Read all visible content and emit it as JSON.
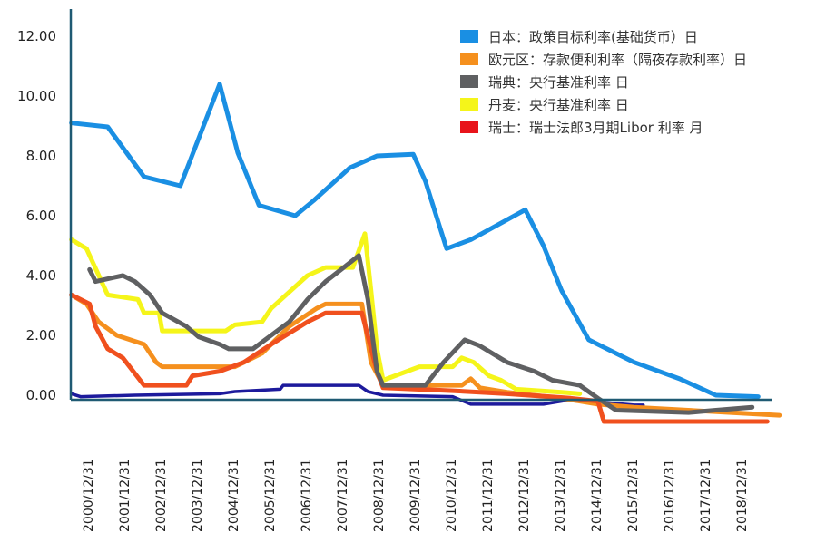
{
  "chart_data": {
    "type": "line",
    "title": "",
    "xlabel": "",
    "ylabel": "",
    "ylim": [
      -1,
      12.5
    ],
    "grid": false,
    "legend_placement": "top-right",
    "y_ticks": [
      "12.00",
      "10.00",
      "8.00",
      "6.00",
      "4.00",
      "2.00",
      "0.00"
    ],
    "y_tick_values": [
      12,
      10,
      8,
      6,
      4,
      2,
      0
    ],
    "x_ticks": [
      "2000/12/31",
      "2001/12/31",
      "2002/12/31",
      "2003/12/31",
      "2004/12/31",
      "2005/12/31",
      "2006/12/31",
      "2007/12/31",
      "2008/12/31",
      "2009/12/31",
      "2010/12/31",
      "2011/12/31",
      "2012/12/31",
      "2013/12/31",
      "2014/12/31",
      "2015/12/31",
      "2016/12/31",
      "2017/12/31",
      "2018/12/31"
    ],
    "axis_color": "#1f5a73",
    "series": [
      {
        "name": "日本：政策目标利率(基础货币）日",
        "color": "#1a8fe3",
        "legend_color": "#1a8fe3",
        "points": [
          [
            "2000-07",
            9.1
          ],
          [
            "2001-07",
            8.97
          ],
          [
            "2002-07",
            7.3
          ],
          [
            "2003-07",
            7.0
          ],
          [
            "2004-08",
            10.4
          ],
          [
            "2005-02",
            8.1
          ],
          [
            "2005-09",
            6.35
          ],
          [
            "2006-09",
            6.0
          ],
          [
            "2007-03",
            6.5
          ],
          [
            "2008-03",
            7.6
          ],
          [
            "2008-12",
            8.0
          ],
          [
            "2009-12",
            8.05
          ],
          [
            "2010-04",
            7.15
          ],
          [
            "2010-11",
            4.9
          ],
          [
            "2011-07",
            5.2
          ],
          [
            "2013-01",
            6.2
          ],
          [
            "2013-07",
            5.0
          ],
          [
            "2014-01",
            3.5
          ],
          [
            "2014-10",
            1.85
          ],
          [
            "2015-04",
            1.55
          ],
          [
            "2016-01",
            1.1
          ],
          [
            "2017-04",
            0.55
          ],
          [
            "2018-04",
            0.0
          ],
          [
            "2019-06",
            -0.05
          ]
        ]
      },
      {
        "name": "欧元区：存款便利利率（隔夜存款利率）日",
        "color": "#f5901e",
        "legend_color": "#f5901e",
        "points": [
          [
            "2000-07",
            3.35
          ],
          [
            "2000-12",
            3.05
          ],
          [
            "2001-04",
            2.45
          ],
          [
            "2001-10",
            2.0
          ],
          [
            "2002-07",
            1.7
          ],
          [
            "2002-11",
            1.1
          ],
          [
            "2003-01",
            0.95
          ],
          [
            "2005-01",
            0.95
          ],
          [
            "2005-04",
            1.1
          ],
          [
            "2005-10",
            1.4
          ],
          [
            "2006-07",
            2.3
          ],
          [
            "2007-04",
            2.9
          ],
          [
            "2007-07",
            3.05
          ],
          [
            "2008-07",
            3.05
          ],
          [
            "2008-10",
            1.1
          ],
          [
            "2009-02",
            0.33
          ],
          [
            "2011-04",
            0.33
          ],
          [
            "2011-07",
            0.55
          ],
          [
            "2011-10",
            0.25
          ],
          [
            "2012-07",
            0.1
          ],
          [
            "2014-01",
            -0.1
          ],
          [
            "2015-01",
            -0.3
          ],
          [
            "2016-01",
            -0.4
          ],
          [
            "2020-01",
            -0.67
          ]
        ]
      },
      {
        "name": "瑞典：央行基准利率 日",
        "color": "#5f6062",
        "legend_color": "#5f6062",
        "points": [
          [
            "2001-01",
            4.2
          ],
          [
            "2001-03",
            3.8
          ],
          [
            "2001-12",
            4.0
          ],
          [
            "2002-04",
            3.8
          ],
          [
            "2002-09",
            3.35
          ],
          [
            "2003-01",
            2.75
          ],
          [
            "2003-09",
            2.3
          ],
          [
            "2004-01",
            1.95
          ],
          [
            "2004-08",
            1.7
          ],
          [
            "2004-11",
            1.55
          ],
          [
            "2005-07",
            1.55
          ],
          [
            "2006-01",
            2.0
          ],
          [
            "2006-07",
            2.45
          ],
          [
            "2007-01",
            3.2
          ],
          [
            "2007-07",
            3.8
          ],
          [
            "2008-01",
            4.27
          ],
          [
            "2008-06",
            4.67
          ],
          [
            "2008-09",
            3.2
          ],
          [
            "2008-12",
            0.8
          ],
          [
            "2009-02",
            0.33
          ],
          [
            "2010-04",
            0.33
          ],
          [
            "2010-10",
            1.1
          ],
          [
            "2011-05",
            1.85
          ],
          [
            "2011-10",
            1.65
          ],
          [
            "2012-07",
            1.1
          ],
          [
            "2013-04",
            0.8
          ],
          [
            "2013-10",
            0.5
          ],
          [
            "2014-07",
            0.33
          ],
          [
            "2015-01",
            -0.1
          ],
          [
            "2015-07",
            -0.5
          ],
          [
            "2017-07",
            -0.58
          ],
          [
            "2018-04",
            -0.5
          ],
          [
            "2019-04",
            -0.4
          ]
        ]
      },
      {
        "name": "丹麦：央行基准利率 日",
        "color": "#f5f51a",
        "legend_color": "#f5f51a",
        "points": [
          [
            "2000-07",
            5.2
          ],
          [
            "2000-12",
            4.9
          ],
          [
            "2001-07",
            3.35
          ],
          [
            "2002-05",
            3.2
          ],
          [
            "2002-07",
            2.75
          ],
          [
            "2002-12",
            2.75
          ],
          [
            "2003-01",
            2.15
          ],
          [
            "2004-10",
            2.15
          ],
          [
            "2005-01",
            2.35
          ],
          [
            "2005-10",
            2.45
          ],
          [
            "2006-01",
            2.9
          ],
          [
            "2007-01",
            4.0
          ],
          [
            "2007-07",
            4.27
          ],
          [
            "2008-04",
            4.27
          ],
          [
            "2008-08",
            5.4
          ],
          [
            "2008-10",
            3.5
          ],
          [
            "2008-12",
            1.55
          ],
          [
            "2009-02",
            0.5
          ],
          [
            "2010-02",
            0.95
          ],
          [
            "2011-01",
            0.95
          ],
          [
            "2011-04",
            1.25
          ],
          [
            "2011-08",
            1.1
          ],
          [
            "2012-01",
            0.65
          ],
          [
            "2012-05",
            0.5
          ],
          [
            "2012-10",
            0.2
          ],
          [
            "2014-01",
            0.1
          ],
          [
            "2014-07",
            0.05
          ]
        ]
      },
      {
        "name": "瑞士：瑞士法郎3月期Libor 利率 月",
        "color": "#f0501e",
        "legend_color": "#e8141b",
        "points": [
          [
            "2000-07",
            3.35
          ],
          [
            "2001-01",
            3.05
          ],
          [
            "2001-03",
            2.3
          ],
          [
            "2001-07",
            1.55
          ],
          [
            "2001-12",
            1.25
          ],
          [
            "2002-07",
            0.33
          ],
          [
            "2003-09",
            0.33
          ],
          [
            "2003-11",
            0.65
          ],
          [
            "2004-08",
            0.8
          ],
          [
            "2005-04",
            1.1
          ],
          [
            "2006-01",
            1.7
          ],
          [
            "2007-01",
            2.45
          ],
          [
            "2007-07",
            2.75
          ],
          [
            "2008-07",
            2.75
          ],
          [
            "2008-12",
            0.8
          ],
          [
            "2009-02",
            0.25
          ],
          [
            "2011-01",
            0.15
          ],
          [
            "2012-07",
            0.05
          ],
          [
            "2014-04",
            -0.1
          ],
          [
            "2015-01",
            -0.2
          ],
          [
            "2015-03",
            -0.88
          ],
          [
            "2019-09",
            -0.88
          ]
        ]
      },
      {
        "name": "",
        "color": "#1d1a9c",
        "points": [
          [
            "2000-07",
            0.05
          ],
          [
            "2000-10",
            -0.05
          ],
          [
            "2002-04",
            0.0
          ],
          [
            "2004-08",
            0.05
          ],
          [
            "2005-01",
            0.12
          ],
          [
            "2006-04",
            0.2
          ],
          [
            "2006-05",
            0.33
          ],
          [
            "2008-06",
            0.33
          ],
          [
            "2008-09",
            0.12
          ],
          [
            "2009-02",
            0.0
          ],
          [
            "2011-01",
            -0.05
          ],
          [
            "2011-07",
            -0.3
          ],
          [
            "2013-07",
            -0.3
          ],
          [
            "2014-04",
            -0.15
          ],
          [
            "2016-01",
            -0.33
          ],
          [
            "2016-04",
            -0.33
          ]
        ]
      }
    ]
  }
}
